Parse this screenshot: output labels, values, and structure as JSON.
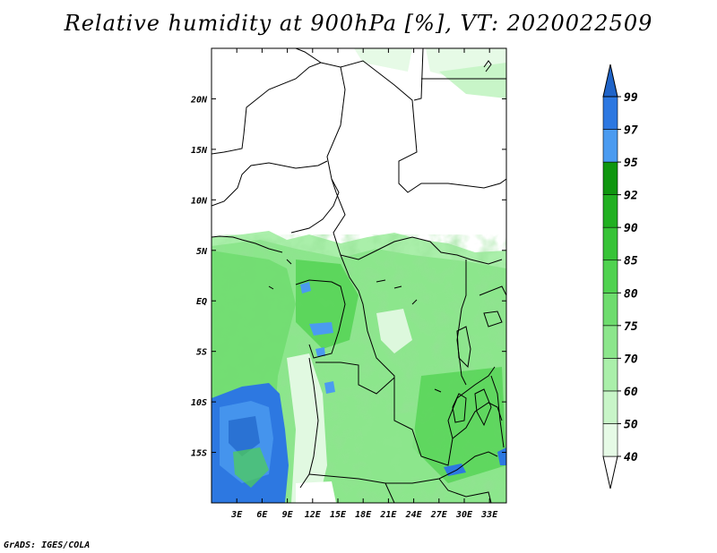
{
  "title": "Relative humidity at 900hPa [%], VT: 2020022509",
  "footer": "GrADS: IGES/COLA",
  "map": {
    "lon_range": [
      0,
      35
    ],
    "lat_range": [
      -20,
      25
    ],
    "lon_ticks": [
      "3E",
      "6E",
      "9E",
      "12E",
      "15E",
      "18E",
      "21E",
      "24E",
      "27E",
      "30E",
      "33E"
    ],
    "lon_tick_values": [
      3,
      6,
      9,
      12,
      15,
      18,
      21,
      24,
      27,
      30,
      33
    ],
    "lat_ticks": [
      "20N",
      "15N",
      "10N",
      "5N",
      "EQ",
      "5S",
      "10S",
      "15S"
    ],
    "lat_tick_values": [
      20,
      15,
      10,
      5,
      0,
      -5,
      -10,
      -15
    ]
  },
  "colorbar": {
    "levels": [
      "40",
      "50",
      "60",
      "70",
      "75",
      "80",
      "85",
      "90",
      "92",
      "95",
      "97",
      "99"
    ],
    "colors": [
      "#ffffff",
      "#e6fae6",
      "#c8f5c8",
      "#aaefaa",
      "#8ce68c",
      "#6edc6e",
      "#50d250",
      "#37c337",
      "#21b021",
      "#0f960f",
      "#4b9bf0",
      "#2d78e1",
      "#2064c8"
    ]
  }
}
